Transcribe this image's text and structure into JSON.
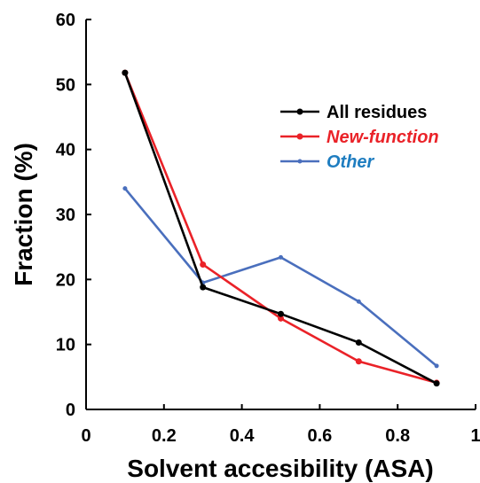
{
  "chart_data": {
    "type": "line",
    "xlabel": "Solvent accesibility (ASA)",
    "ylabel": "Fraction (%)",
    "xlim": [
      0,
      1
    ],
    "ylim": [
      0,
      60
    ],
    "x_ticks": [
      "0",
      "0.2",
      "0.4",
      "0.6",
      "0.8",
      "1"
    ],
    "y_ticks": [
      "0",
      "10",
      "20",
      "30",
      "40",
      "50",
      "60"
    ],
    "grid": false,
    "legend_position": "top-right",
    "x": [
      0.1,
      0.3,
      0.5,
      0.7,
      0.9
    ],
    "series": [
      {
        "name": "All residues",
        "color": "#000000",
        "legend_italic": false,
        "values": [
          51.8,
          18.8,
          14.7,
          10.3,
          4.0
        ]
      },
      {
        "name": "New-function",
        "color": "#ea2228",
        "legend_italic": true,
        "values": [
          51.8,
          22.3,
          14.0,
          7.4,
          4.1
        ]
      },
      {
        "name": "Other",
        "color": "#4a6fbd",
        "legend_italic": true,
        "legend_color": "#1e7dc0",
        "values": [
          34.0,
          19.5,
          23.4,
          16.6,
          6.7
        ]
      }
    ]
  }
}
